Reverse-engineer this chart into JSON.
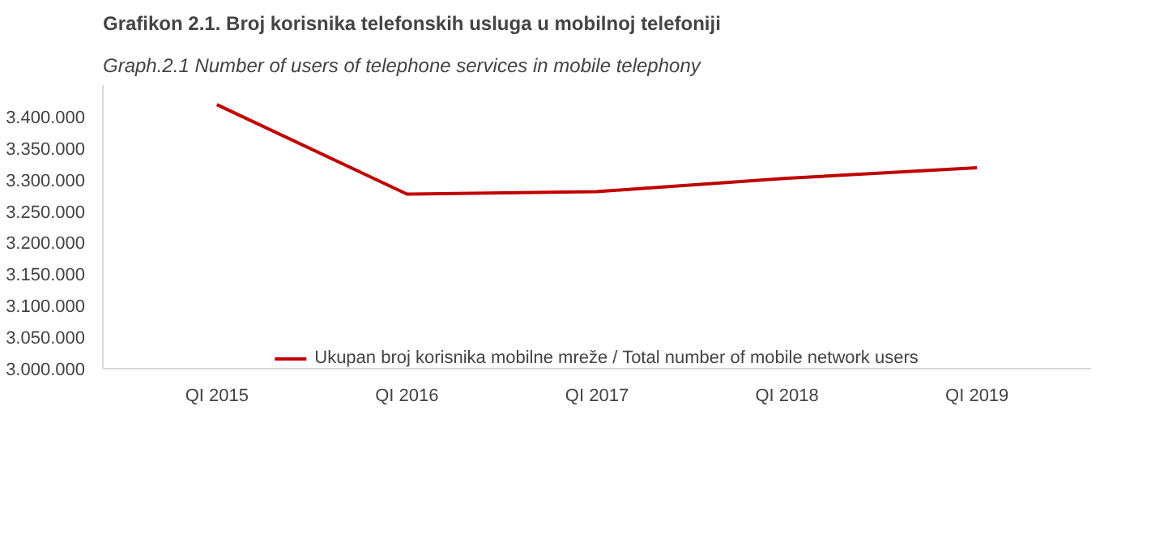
{
  "chart_data": {
    "type": "line",
    "title": "Grafikon 2.1. Broj korisnika telefonskih usluga u mobilnoj telefoniji",
    "subtitle": "Graph.2.1  Number of users of telephone services in mobile telephony",
    "categories": [
      "QI 2015",
      "QI 2016",
      "QI 2017",
      "QI 2018",
      "QI 2019"
    ],
    "series": [
      {
        "name": "Ukupan broj korisnika mobilne mreže / Total number of mobile network users",
        "color": "#c00000",
        "values": [
          3419000,
          3277000,
          3281000,
          3302000,
          3319000
        ]
      }
    ],
    "ylim": [
      3000000,
      3450000
    ],
    "yticks": [
      {
        "value": 3000000,
        "label": "3.000.000"
      },
      {
        "value": 3050000,
        "label": "3.050.000"
      },
      {
        "value": 3100000,
        "label": "3.100.000"
      },
      {
        "value": 3150000,
        "label": "3.150.000"
      },
      {
        "value": 3200000,
        "label": "3.200.000"
      },
      {
        "value": 3250000,
        "label": "3.250.000"
      },
      {
        "value": 3300000,
        "label": "3.300.000"
      },
      {
        "value": 3350000,
        "label": "3.350.000"
      },
      {
        "value": 3400000,
        "label": "3.400.000"
      }
    ],
    "grid": false,
    "legend": "bottom",
    "marker": "none",
    "line_style": "solid"
  }
}
